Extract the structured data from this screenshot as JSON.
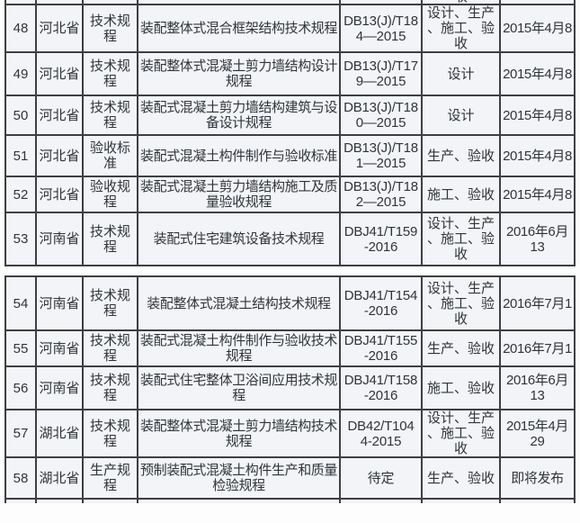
{
  "colors": {
    "cell_background": "#f2f4f7",
    "border": "#3d3f43",
    "text": "#303438",
    "page_background": "#fdfdfd"
  },
  "partials": {
    "top_phases_fragment": "收"
  },
  "tables": [
    {
      "rows": [
        {
          "num": "48",
          "province": "河北省",
          "type": "技术规程",
          "title": "装配整体式混合框架结构技术规程",
          "standard": "DB13(J)/T18\n4—2015",
          "phases": "设计、生产\n、施工、验\n收",
          "date": "2015年4月8"
        },
        {
          "num": "49",
          "province": "河北省",
          "type": "技术规程",
          "title": "装配整体式混凝土剪力墙结构设计\n规程",
          "standard": "DB13(J)/T17\n9—2015",
          "phases": "设计",
          "date": "2015年4月8"
        },
        {
          "num": "50",
          "province": "河北省",
          "type": "技术规程",
          "title": "装配式混凝土剪力墙结构建筑与设\n备设计规程",
          "standard": "DB13(J)/T18\n0—2015",
          "phases": "设计",
          "date": "2015年4月8"
        },
        {
          "num": "51",
          "province": "河北省",
          "type": "验收标准",
          "title": "装配式混凝土构件制作与验收标准",
          "standard": "DB13(J)/T18\n1—2015",
          "phases": "生产、验收",
          "date": "2015年4月8"
        },
        {
          "num": "52",
          "province": "河北省",
          "type": "验收规程",
          "title": "装配式混凝土剪力墙结构施工及质\n量验收规程",
          "standard": "DB13(J)/T18\n2—2015",
          "phases": "施工、验收",
          "date": "2015年4月8"
        },
        {
          "num": "53",
          "province": "河南省",
          "type": "技术规程",
          "title": "装配式住宅建筑设备技术规程",
          "standard": "DBJ41/T159\n-2016",
          "phases": "设计、生产\n、施工、验\n收",
          "date": "2016年6月\n13"
        }
      ]
    },
    {
      "rows": [
        {
          "num": "54",
          "province": "河南省",
          "type": "技术规程",
          "title": "装配整体式混凝土结构技术规程",
          "standard": "DBJ41/T154\n-2016",
          "phases": "设计、生产\n、施工、验\n收",
          "date": "2016年7月1"
        },
        {
          "num": "55",
          "province": "河南省",
          "type": "技术规程",
          "title": "装配式混凝土构件制作与验收技术\n规程",
          "standard": "DBJ41/T155\n-2016",
          "phases": "生产、验收",
          "date": "2016年7月1"
        },
        {
          "num": "56",
          "province": "河南省",
          "type": "技术规程",
          "title": "装配式住宅整体卫浴间应用技术规\n程",
          "standard": "DBJ41/T158\n-2016",
          "phases": "施工、验收",
          "date": "2016年6月\n13"
        },
        {
          "num": "57",
          "province": "湖北省",
          "type": "技术规程",
          "title": "装配整体式混凝土剪力墙结构技术\n规程",
          "standard": "DB42/T104\n4-2015",
          "phases": "设计、生产\n、施工、验\n收",
          "date": "2015年4月\n29"
        },
        {
          "num": "58",
          "province": "湖北省",
          "type": "生产规程",
          "title": "预制装配式混凝土构件生产和质量\n检验规程",
          "standard": "待定",
          "phases": "生产、验收",
          "date": "即将发布"
        }
      ]
    }
  ]
}
